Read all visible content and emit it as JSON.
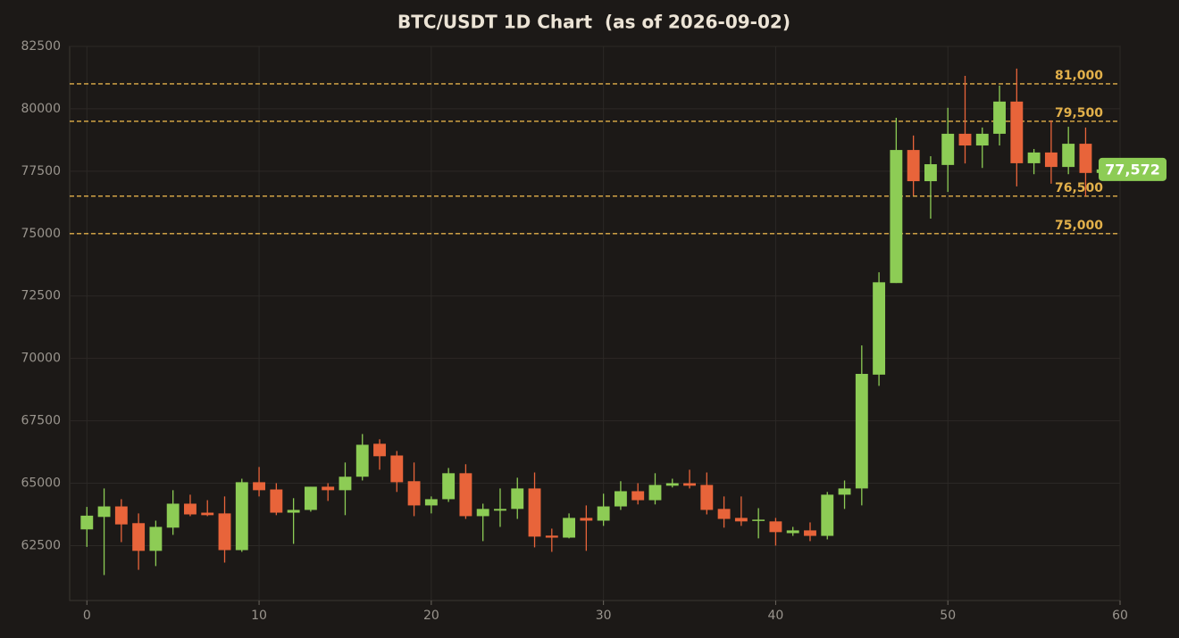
{
  "chart_data": {
    "type": "candlestick",
    "title": "BTC/USDT 1D Chart  (as of 2026-09-02)",
    "x": [
      0,
      1,
      2,
      3,
      4,
      5,
      6,
      7,
      8,
      9,
      10,
      11,
      12,
      13,
      14,
      15,
      16,
      17,
      18,
      19,
      20,
      21,
      22,
      23,
      24,
      25,
      26,
      27,
      28,
      29,
      30,
      31,
      32,
      33,
      34,
      35,
      36,
      37,
      38,
      39,
      40,
      41,
      42,
      43,
      44,
      45,
      46,
      47,
      48,
      49,
      50,
      51,
      52,
      53,
      54,
      55,
      56,
      57,
      58,
      59
    ],
    "open": [
      63150,
      63650,
      64070,
      63400,
      62290,
      63220,
      64180,
      63820,
      63790,
      62320,
      65040,
      64750,
      63820,
      63930,
      64860,
      64720,
      65260,
      66580,
      66110,
      65080,
      64110,
      64360,
      65400,
      63680,
      63900,
      63970,
      64790,
      62900,
      62820,
      63610,
      63500,
      64070,
      64680,
      64320,
      64900,
      65000,
      64930,
      63970,
      63610,
      63500,
      63470,
      63000,
      63110,
      62890,
      64540,
      64790,
      69350,
      73020,
      78350,
      77100,
      77750,
      79000,
      78530,
      79000,
      80290,
      77820,
      78250,
      77670,
      78600,
      77430
    ],
    "high": [
      64050,
      64790,
      64360,
      63790,
      63500,
      64720,
      64540,
      64320,
      64470,
      65180,
      65650,
      65000,
      64400,
      64860,
      65000,
      65830,
      66970,
      66760,
      66290,
      65830,
      64470,
      65610,
      65760,
      64180,
      64790,
      65220,
      65430,
      63180,
      63790,
      64110,
      64580,
      65080,
      65000,
      65400,
      65180,
      65540,
      65430,
      64470,
      64470,
      64000,
      63610,
      63250,
      63430,
      64650,
      65110,
      70520,
      73450,
      79640,
      78930,
      78100,
      80040,
      81320,
      79250,
      80930,
      81610,
      78390,
      79540,
      79280,
      79250,
      77700
    ],
    "low": [
      62450,
      61320,
      62640,
      61530,
      61680,
      62930,
      63680,
      63680,
      61820,
      62250,
      64470,
      63720,
      62570,
      63860,
      64290,
      63720,
      65110,
      65540,
      64650,
      63680,
      63790,
      64250,
      63570,
      62680,
      63250,
      63570,
      62430,
      62250,
      62790,
      62290,
      63290,
      63930,
      64150,
      64150,
      64830,
      64790,
      63750,
      63220,
      63290,
      62790,
      62500,
      62890,
      62680,
      62750,
      63970,
      64110,
      68900,
      73020,
      76530,
      75600,
      76670,
      77810,
      77630,
      78530,
      76890,
      77380,
      77000,
      77380,
      76500,
      77400
    ],
    "close": [
      63700,
      64070,
      63350,
      62290,
      63250,
      64180,
      63750,
      63720,
      62320,
      65040,
      64720,
      63820,
      63930,
      64860,
      64720,
      65260,
      66540,
      66080,
      65040,
      64110,
      64360,
      65400,
      63680,
      63970,
      63970,
      64790,
      62860,
      62820,
      63610,
      63500,
      64070,
      64680,
      64320,
      64930,
      65000,
      64900,
      63930,
      63570,
      63470,
      63540,
      63040,
      63110,
      62890,
      64540,
      64790,
      69380,
      73050,
      78350,
      77100,
      77780,
      79000,
      78530,
      79000,
      80290,
      77820,
      78250,
      77670,
      78600,
      77430,
      77572
    ],
    "up_color": "#8dcc55",
    "down_color": "#e8643a",
    "xlim": [
      -1,
      60
    ],
    "xticks": [
      0,
      10,
      20,
      30,
      40,
      50,
      60
    ],
    "ylim": [
      60300,
      82500
    ],
    "yticks": [
      62500,
      65000,
      67500,
      70000,
      72500,
      75000,
      77500,
      80000,
      82500
    ],
    "grid": true,
    "levels": [
      {
        "value": 81000,
        "label": "81,000"
      },
      {
        "value": 79500,
        "label": "79,500"
      },
      {
        "value": 76500,
        "label": "76,500"
      },
      {
        "value": 75000,
        "label": "75,000"
      }
    ],
    "level_color": "#e2b04a",
    "last_price": {
      "value": 77572,
      "label": "77,572"
    }
  }
}
